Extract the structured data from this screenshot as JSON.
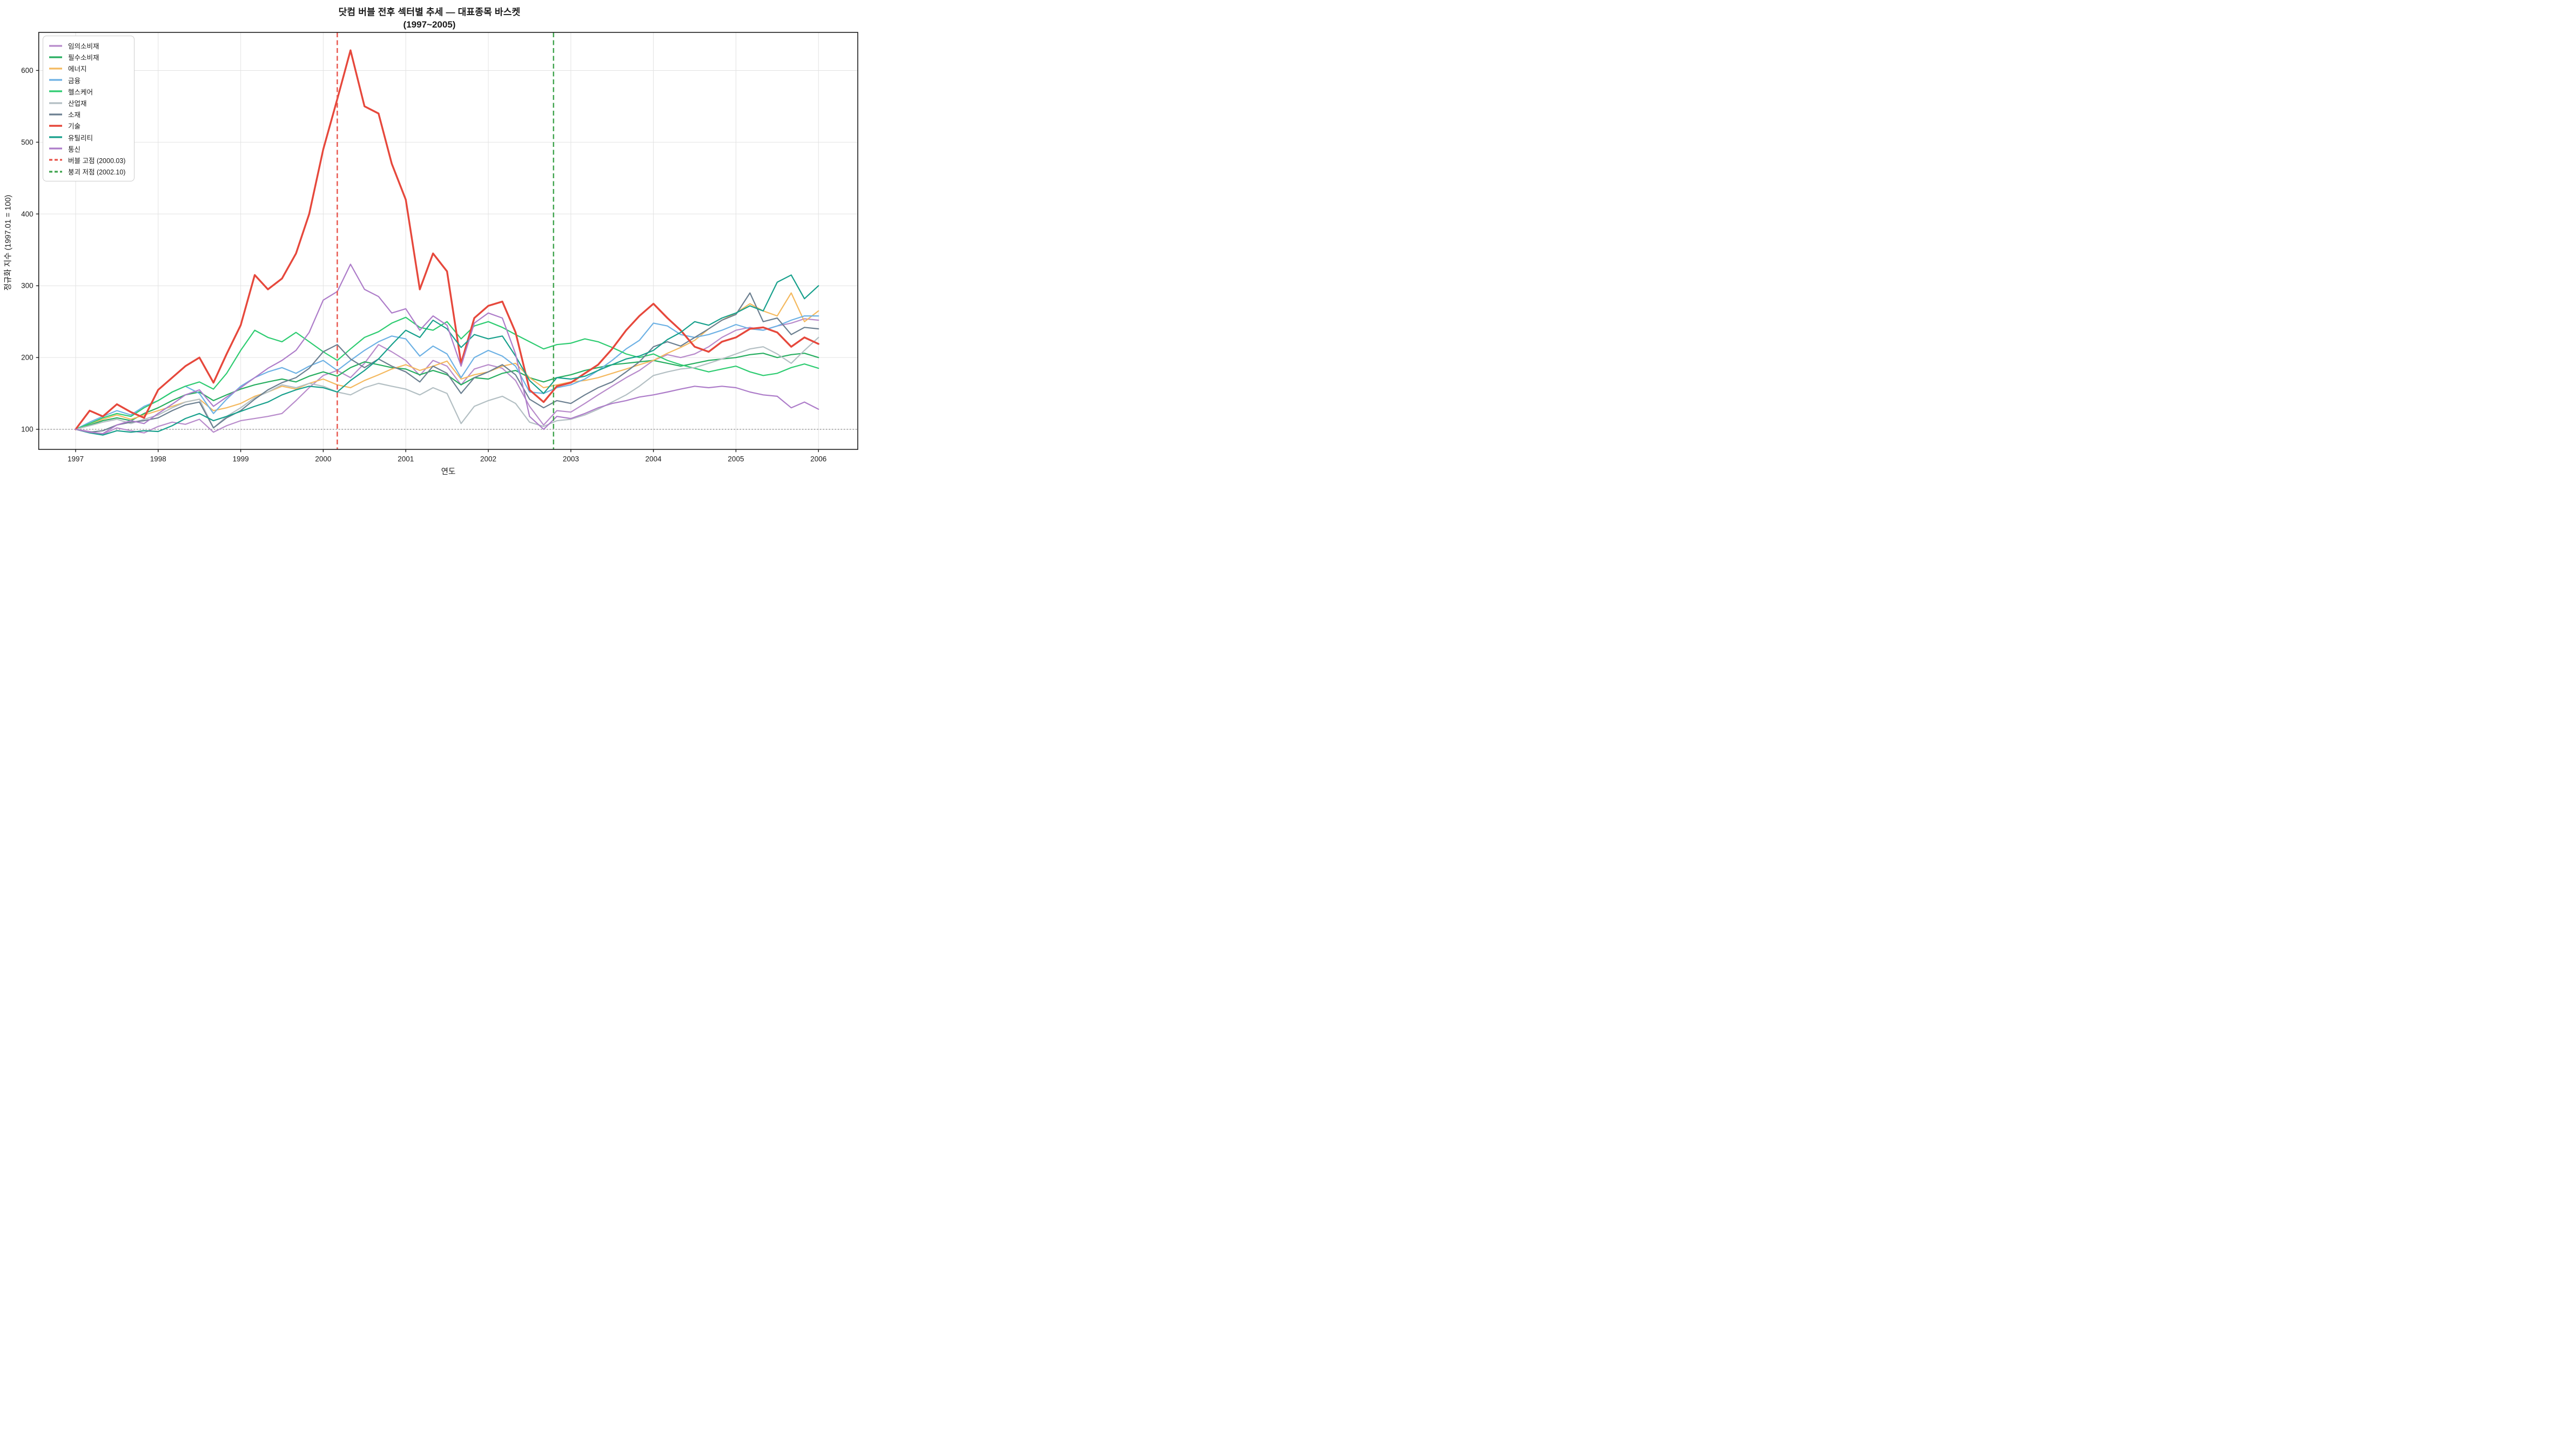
{
  "title": {
    "line1": "닷컴 버블 전후 섹터별 추세 — 대표종목 바스켓",
    "line2": "(1997~2005)"
  },
  "axes": {
    "xlabel": "연도",
    "ylabel": "정규화 지수 (1997.01 = 100)",
    "x_ticks": [
      1997,
      1998,
      1999,
      2000,
      2001,
      2002,
      2003,
      2004,
      2005,
      2006
    ],
    "y_ticks": [
      100,
      200,
      300,
      400,
      500,
      600
    ],
    "xlim": [
      1996.553,
      2006.476
    ],
    "ylim": [
      72,
      653
    ],
    "grid": true,
    "grid_color": "#e2e2e2",
    "spine_color": "#1a1a1a",
    "baseline_value": 100,
    "baseline_color": "#666666"
  },
  "chart_data": {
    "type": "line",
    "title": "닷컴 버블 전후 섹터별 추세 — 대표종목 바스켓 (1997~2005)",
    "xlabel": "연도",
    "ylabel": "정규화 지수 (1997.01 = 100)",
    "legend_position": "upper left",
    "x": [
      1997.0,
      1997.17,
      1997.33,
      1997.5,
      1997.67,
      1997.83,
      1998.0,
      1998.17,
      1998.33,
      1998.5,
      1998.67,
      1998.83,
      1999.0,
      1999.17,
      1999.33,
      1999.5,
      1999.67,
      1999.83,
      2000.0,
      2000.17,
      2000.33,
      2000.5,
      2000.67,
      2000.83,
      2001.0,
      2001.17,
      2001.33,
      2001.5,
      2001.67,
      2001.83,
      2002.0,
      2002.17,
      2002.33,
      2002.5,
      2002.67,
      2002.83,
      2003.0,
      2003.17,
      2003.33,
      2003.5,
      2003.67,
      2003.83,
      2004.0,
      2004.17,
      2004.33,
      2004.5,
      2004.67,
      2004.83,
      2005.0,
      2005.17,
      2005.33,
      2005.5,
      2005.67,
      2005.83,
      2006.0
    ],
    "series": [
      {
        "id": "consumer-discretionary",
        "label": "임의소비재",
        "color": "#b88bcb",
        "width": 2.2,
        "values": [
          100,
          97,
          93,
          102,
          98,
          95,
          104,
          110,
          107,
          114,
          96,
          105,
          112,
          115,
          118,
          122,
          140,
          158,
          175,
          182,
          172,
          192,
          218,
          208,
          196,
          175,
          196,
          188,
          162,
          184,
          190,
          185,
          168,
          132,
          106,
          126,
          124,
          136,
          148,
          160,
          172,
          182,
          196,
          204,
          200,
          205,
          215,
          228,
          238,
          242,
          238,
          244,
          248,
          254,
          252
        ]
      },
      {
        "id": "consumer-staples",
        "label": "필수소비재",
        "color": "#27ae60",
        "width": 2.2,
        "values": [
          100,
          106,
          112,
          116,
          112,
          122,
          130,
          140,
          148,
          152,
          140,
          148,
          156,
          162,
          166,
          170,
          166,
          174,
          180,
          174,
          186,
          194,
          190,
          186,
          184,
          176,
          182,
          176,
          162,
          172,
          170,
          178,
          182,
          172,
          166,
          172,
          176,
          182,
          186,
          190,
          192,
          194,
          196,
          192,
          188,
          192,
          196,
          198,
          200,
          204,
          206,
          200,
          204,
          206,
          200
        ]
      },
      {
        "id": "energy",
        "label": "에너지",
        "color": "#f4b95f",
        "width": 2.2,
        "values": [
          100,
          108,
          114,
          120,
          114,
          120,
          126,
          132,
          138,
          142,
          126,
          130,
          136,
          146,
          152,
          160,
          156,
          164,
          170,
          162,
          158,
          168,
          176,
          184,
          190,
          182,
          188,
          195,
          170,
          176,
          180,
          188,
          192,
          172,
          158,
          162,
          166,
          168,
          172,
          178,
          184,
          190,
          196,
          206,
          214,
          224,
          240,
          252,
          262,
          275,
          265,
          258,
          290,
          250,
          265
        ]
      },
      {
        "id": "financials",
        "label": "금융",
        "color": "#6db1e4",
        "width": 2.2,
        "values": [
          100,
          110,
          118,
          126,
          120,
          132,
          140,
          152,
          160,
          150,
          122,
          142,
          160,
          172,
          180,
          186,
          178,
          188,
          196,
          182,
          196,
          210,
          222,
          230,
          226,
          202,
          216,
          205,
          172,
          200,
          210,
          202,
          188,
          152,
          150,
          158,
          162,
          170,
          182,
          196,
          212,
          224,
          248,
          244,
          232,
          228,
          232,
          238,
          246,
          240,
          238,
          244,
          252,
          258,
          258
        ]
      },
      {
        "id": "healthcare",
        "label": "헬스케어",
        "color": "#2ecc71",
        "width": 2.2,
        "values": [
          100,
          108,
          116,
          122,
          118,
          130,
          140,
          152,
          160,
          166,
          156,
          178,
          210,
          238,
          228,
          222,
          235,
          222,
          208,
          196,
          212,
          228,
          236,
          248,
          256,
          242,
          238,
          250,
          226,
          244,
          250,
          242,
          232,
          222,
          212,
          218,
          220,
          226,
          222,
          214,
          205,
          200,
          205,
          196,
          190,
          185,
          180,
          184,
          188,
          180,
          175,
          178,
          186,
          191,
          185
        ]
      },
      {
        "id": "industrials",
        "label": "산업재",
        "color": "#b3bfc3",
        "width": 2.2,
        "values": [
          100,
          105,
          110,
          114,
          108,
          114,
          120,
          130,
          138,
          142,
          102,
          118,
          130,
          144,
          152,
          162,
          158,
          164,
          160,
          152,
          148,
          158,
          164,
          160,
          156,
          148,
          158,
          150,
          108,
          132,
          140,
          146,
          136,
          110,
          104,
          112,
          114,
          120,
          128,
          138,
          148,
          160,
          175,
          180,
          184,
          186,
          192,
          198,
          205,
          212,
          215,
          205,
          192,
          210,
          228
        ]
      },
      {
        "id": "materials",
        "label": "소재",
        "color": "#6b7f90",
        "width": 2.2,
        "values": [
          100,
          96,
          98,
          106,
          110,
          112,
          116,
          126,
          134,
          138,
          102,
          116,
          126,
          142,
          155,
          165,
          172,
          185,
          208,
          218,
          198,
          186,
          198,
          188,
          180,
          166,
          188,
          178,
          150,
          172,
          180,
          190,
          176,
          142,
          130,
          140,
          136,
          148,
          158,
          166,
          180,
          194,
          215,
          222,
          216,
          228,
          240,
          252,
          260,
          290,
          250,
          255,
          232,
          242,
          240
        ]
      },
      {
        "id": "technology",
        "label": "기술",
        "color": "#e6483c",
        "width": 3.4,
        "values": [
          100,
          126,
          118,
          135,
          124,
          116,
          155,
          172,
          188,
          200,
          165,
          205,
          245,
          315,
          295,
          310,
          345,
          400,
          490,
          560,
          628,
          550,
          540,
          470,
          420,
          295,
          345,
          320,
          192,
          255,
          272,
          278,
          235,
          155,
          138,
          160,
          165,
          178,
          190,
          212,
          238,
          258,
          275,
          255,
          238,
          215,
          208,
          222,
          228,
          240,
          242,
          235,
          215,
          228,
          219
        ]
      },
      {
        "id": "utilities",
        "label": "유틸리티",
        "color": "#17a08c",
        "width": 2.2,
        "values": [
          100,
          95,
          92,
          98,
          96,
          98,
          97,
          105,
          115,
          122,
          112,
          118,
          125,
          132,
          138,
          148,
          155,
          160,
          158,
          152,
          168,
          182,
          198,
          218,
          238,
          228,
          252,
          240,
          214,
          232,
          226,
          230,
          202,
          168,
          150,
          172,
          170,
          174,
          182,
          190,
          198,
          202,
          210,
          225,
          235,
          250,
          245,
          255,
          262,
          272,
          265,
          305,
          315,
          282,
          300
        ]
      },
      {
        "id": "telecom",
        "label": "통신",
        "color": "#ad7cc9",
        "width": 2.2,
        "values": [
          100,
          96,
          94,
          106,
          112,
          108,
          122,
          135,
          148,
          155,
          132,
          145,
          158,
          172,
          185,
          196,
          210,
          235,
          280,
          292,
          330,
          295,
          285,
          262,
          268,
          238,
          258,
          245,
          188,
          248,
          262,
          255,
          205,
          118,
          100,
          118,
          115,
          122,
          130,
          136,
          140,
          145,
          148,
          152,
          156,
          160,
          158,
          160,
          158,
          152,
          148,
          146,
          130,
          138,
          128
        ]
      }
    ],
    "events": [
      {
        "id": "bubble-peak",
        "label": "버블 고점 (2000.03)",
        "x": 2000.17,
        "color": "#e8534a",
        "style": "dashed"
      },
      {
        "id": "crash-trough",
        "label": "붕괴 저점 (2002.10)",
        "x": 2002.79,
        "color": "#3fa34d",
        "style": "dashed"
      }
    ]
  }
}
